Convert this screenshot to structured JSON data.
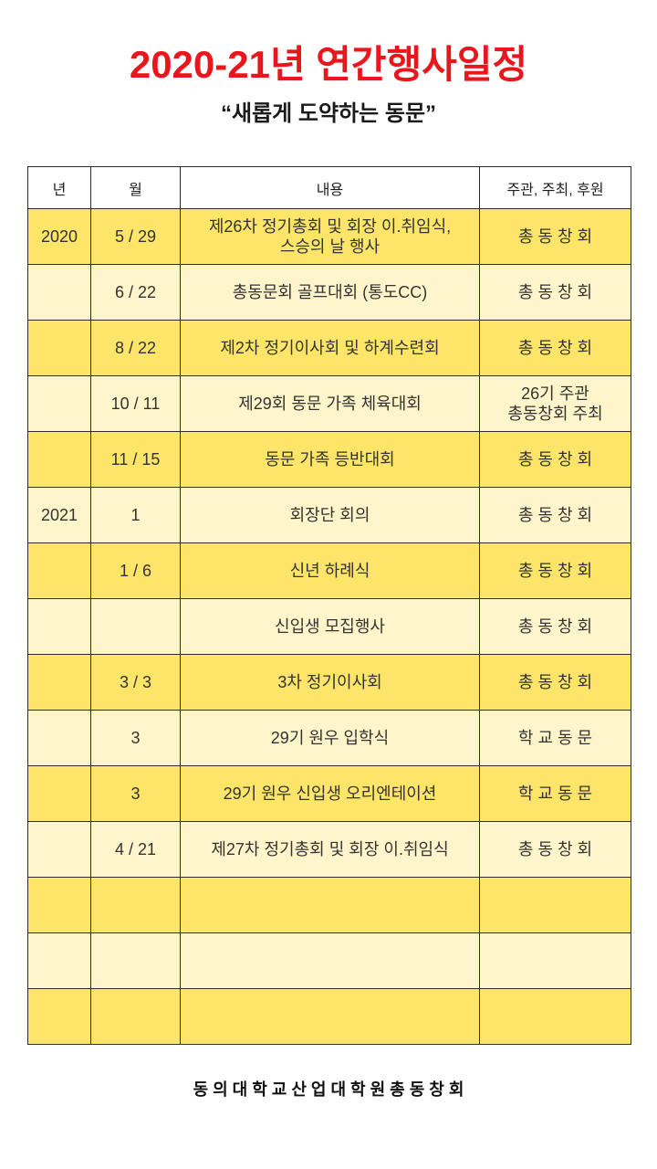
{
  "title": "2020-21년 연간행사일정",
  "subtitle": "“새롭게 도약하는 동문”",
  "colors": {
    "title": "#e8161d",
    "row_dark": "#fde56a",
    "row_light": "#fff5cb"
  },
  "table": {
    "headers": [
      "년",
      "월",
      "내용",
      "주관, 주최, 후원"
    ],
    "rows": [
      {
        "year": "2020",
        "month": "5 / 29",
        "content": "제26차 정기총회 및 회장 이.취임식,\n스승의 날 행사",
        "host": "총 동 창 회"
      },
      {
        "year": "",
        "month": "6 / 22",
        "content": "총동문회 골프대회 (통도CC)",
        "host": "총 동 창 회"
      },
      {
        "year": "",
        "month": "8 / 22",
        "content": "제2차 정기이사회 및 하계수련회",
        "host": "총 동 창 회"
      },
      {
        "year": "",
        "month": "10 / 11",
        "content": "제29회 동문 가족 체육대회",
        "host": "26기 주관\n총동창회 주최"
      },
      {
        "year": "",
        "month": "11 / 15",
        "content": "동문 가족 등반대회",
        "host": "총 동 창 회"
      },
      {
        "year": "2021",
        "month": "1",
        "content": "회장단 회의",
        "host": "총 동 창 회"
      },
      {
        "year": "",
        "month": "1 / 6",
        "content": "신년 하례식",
        "host": "총 동 창 회"
      },
      {
        "year": "",
        "month": "",
        "content": "신입생 모집행사",
        "host": "총 동 창 회"
      },
      {
        "year": "",
        "month": "3 / 3",
        "content": "3차 정기이사회",
        "host": "총 동 창 회"
      },
      {
        "year": "",
        "month": "3",
        "content": "29기 원우 입학식",
        "host": "학 교 동 문"
      },
      {
        "year": "",
        "month": "3",
        "content": "29기 원우 신입생 오리엔테이션",
        "host": "학 교 동 문"
      },
      {
        "year": "",
        "month": "4 / 21",
        "content": "제27차 정기총회 및 회장 이.취임식",
        "host": "총 동 창 회"
      },
      {
        "year": "",
        "month": "",
        "content": "",
        "host": ""
      },
      {
        "year": "",
        "month": "",
        "content": "",
        "host": ""
      },
      {
        "year": "",
        "month": "",
        "content": "",
        "host": ""
      }
    ]
  },
  "footer": "동 의 대 학 교 산 업 대 학 원 총 동 창 회"
}
